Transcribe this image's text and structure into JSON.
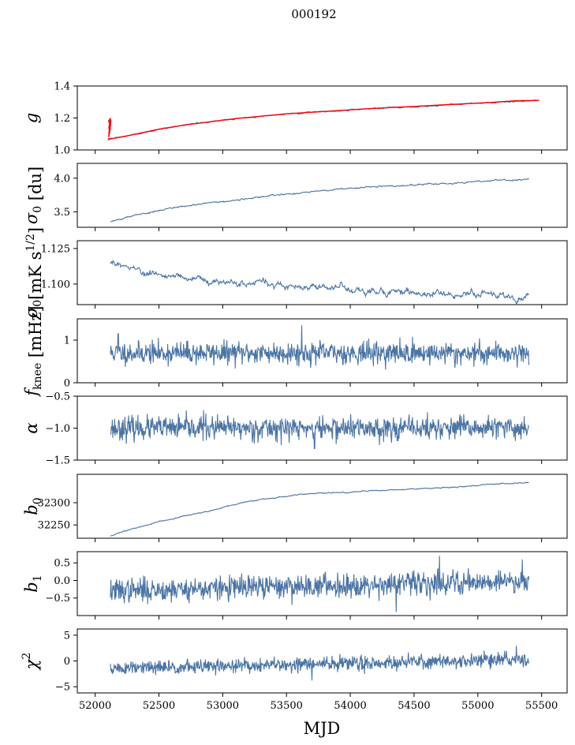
{
  "figure": {
    "title": "000192",
    "xlabel": "MJD"
  },
  "colors": {
    "series": "#4a74a5",
    "fit": "#ff0000",
    "axes": "#000000"
  },
  "chart_data": [
    {
      "type": "line",
      "id": "g",
      "ylabel_main": "g",
      "ylabel_sub": "",
      "ylabel_rest": "",
      "xlim": [
        51860,
        55700
      ],
      "ylim": [
        1.0,
        1.4
      ],
      "yticks": [
        1.0,
        1.2,
        1.4
      ],
      "ytick_labels": [
        "1.0",
        "1.2",
        "1.4"
      ],
      "show_xtick_labels": false,
      "series": [
        {
          "kind": "smooth",
          "x": [
            52100,
            52150,
            52300,
            52500,
            52700,
            52900,
            53100,
            53300,
            53500,
            53700,
            53900,
            54100,
            54300,
            54500,
            54700,
            54900,
            55100,
            55300,
            55480
          ],
          "y": [
            1.065,
            1.072,
            1.095,
            1.128,
            1.155,
            1.175,
            1.195,
            1.21,
            1.225,
            1.235,
            1.245,
            1.255,
            1.265,
            1.27,
            1.28,
            1.288,
            1.295,
            1.305,
            1.31
          ],
          "noise": 0.002
        },
        {
          "kind": "smooth",
          "role": "fit",
          "x": [
            52100,
            52150,
            52300,
            52500,
            52700,
            52900,
            53100,
            53300,
            53500,
            53700,
            53900,
            54100,
            54300,
            54500,
            54700,
            54900,
            55100,
            55300,
            55480
          ],
          "y": [
            1.07,
            1.073,
            1.096,
            1.13,
            1.156,
            1.176,
            1.196,
            1.211,
            1.226,
            1.236,
            1.246,
            1.256,
            1.265,
            1.272,
            1.281,
            1.289,
            1.297,
            1.308,
            1.31
          ],
          "spike": {
            "x": 52110,
            "ymin": 1.06,
            "ymax": 1.2
          }
        }
      ]
    },
    {
      "type": "line",
      "id": "sigma0_du",
      "ylabel_main": "σ",
      "ylabel_sub": "0",
      "ylabel_rest": " [du]",
      "xlim": [
        51860,
        55700
      ],
      "ylim": [
        3.27,
        4.22
      ],
      "yticks": [
        3.5,
        4.0
      ],
      "ytick_labels": [
        "3.5",
        "4.0"
      ],
      "show_xtick_labels": false,
      "series": [
        {
          "kind": "smooth",
          "x": [
            52120,
            52300,
            52500,
            52700,
            52900,
            53100,
            53300,
            53500,
            53700,
            53900,
            54100,
            54300,
            54500,
            54700,
            54900,
            55100,
            55300,
            55400
          ],
          "y": [
            3.35,
            3.44,
            3.52,
            3.58,
            3.63,
            3.68,
            3.72,
            3.76,
            3.8,
            3.83,
            3.86,
            3.88,
            3.9,
            3.92,
            3.94,
            3.96,
            3.97,
            3.99
          ],
          "noise": 0.006
        }
      ]
    },
    {
      "type": "line",
      "id": "sigma0_mk",
      "ylabel_main": "σ",
      "ylabel_sub": "0",
      "ylabel_rest": "[mK s",
      "ylabel_sup": "1/2",
      "ylabel_tail": "]",
      "xlim": [
        51860,
        55700
      ],
      "ylim": [
        1.0855,
        1.1305
      ],
      "yticks": [
        1.1,
        1.125
      ],
      "ytick_labels": [
        "1.100",
        "1.125"
      ],
      "show_xtick_labels": false,
      "series": [
        {
          "kind": "smooth",
          "x": [
            52120,
            52300,
            52500,
            52700,
            52900,
            53100,
            53300,
            53500,
            53700,
            53900,
            54100,
            54300,
            54500,
            54700,
            54900,
            55100,
            55300,
            55400
          ],
          "y": [
            1.115,
            1.112,
            1.107,
            1.105,
            1.103,
            1.101,
            1.1,
            1.099,
            1.098,
            1.097,
            1.096,
            1.095,
            1.094,
            1.093,
            1.093,
            1.092,
            1.091,
            1.094
          ],
          "noise": 0.0013
        }
      ]
    },
    {
      "type": "line",
      "id": "fknee",
      "ylabel_main": "f",
      "ylabel_sub": "knee",
      "ylabel_rest": " [mHz]",
      "xlim": [
        51860,
        55700
      ],
      "ylim": [
        0,
        1.5
      ],
      "yticks": [
        0,
        1
      ],
      "ytick_labels": [
        "0",
        "1"
      ],
      "show_xtick_labels": false,
      "series": [
        {
          "kind": "noise",
          "x0": 52120,
          "x1": 55400,
          "n": 900,
          "mean": 0.7,
          "std": 0.13,
          "seed": 11,
          "spikes": [
            {
              "x": 53620,
              "y": 1.35
            },
            {
              "x": 52180,
              "y": 1.15
            },
            {
              "x": 54820,
              "y": 0.35
            }
          ]
        }
      ]
    },
    {
      "type": "line",
      "id": "alpha",
      "ylabel_main": "α",
      "ylabel_sub": "",
      "ylabel_rest": "",
      "xlim": [
        51860,
        55700
      ],
      "ylim": [
        -1.5,
        -0.5
      ],
      "yticks": [
        -1.5,
        -1.0,
        -0.5
      ],
      "ytick_labels": [
        "−1.5",
        "−1.0",
        "−0.5"
      ],
      "show_xtick_labels": false,
      "series": [
        {
          "kind": "noise",
          "x0": 52120,
          "x1": 55400,
          "n": 900,
          "mean": -1.0,
          "std": 0.09,
          "seed": 23,
          "spikes": [
            {
              "x": 52850,
              "y": -0.72
            },
            {
              "x": 53720,
              "y": -1.32
            }
          ]
        }
      ]
    },
    {
      "type": "line",
      "id": "b0",
      "ylabel_main": "b",
      "ylabel_sub": "0",
      "ylabel_rest": "",
      "xlim": [
        51860,
        55700
      ],
      "ylim": [
        32220,
        32364
      ],
      "yticks": [
        32250,
        32300
      ],
      "ytick_labels": [
        "32250",
        "32300"
      ],
      "show_xtick_labels": false,
      "series": [
        {
          "kind": "smooth",
          "x": [
            52120,
            52300,
            52500,
            52700,
            52900,
            53000,
            53200,
            53400,
            53600,
            53800,
            54000,
            54200,
            54400,
            54600,
            54800,
            55000,
            55200,
            55400
          ],
          "y": [
            32226,
            32242,
            32257,
            32270,
            32281,
            32290,
            32303,
            32311,
            32318,
            32322,
            32325,
            32327,
            32329,
            32332,
            32335,
            32339,
            32343,
            32344
          ],
          "noise": 0.6
        }
      ]
    },
    {
      "type": "line",
      "id": "b1",
      "ylabel_main": "b",
      "ylabel_sub": "1",
      "ylabel_rest": "",
      "xlim": [
        51860,
        55700
      ],
      "ylim": [
        -1.0,
        0.82
      ],
      "yticks": [
        -0.5,
        0.0,
        0.5
      ],
      "ytick_labels": [
        "−0.5",
        "0.0",
        "0.5"
      ],
      "show_xtick_labels": false,
      "series": [
        {
          "kind": "noise",
          "x0": 52120,
          "x1": 55400,
          "n": 900,
          "mean_start": -0.3,
          "mean_end": 0.0,
          "std": 0.17,
          "seed": 37,
          "spikes": [
            {
              "x": 54360,
              "y": -0.9
            },
            {
              "x": 54700,
              "y": 0.7
            },
            {
              "x": 55350,
              "y": 0.6
            }
          ]
        }
      ]
    },
    {
      "type": "line",
      "id": "chi2",
      "ylabel_main": "χ",
      "ylabel_sub": "",
      "ylabel_rest": "",
      "ylabel_sup": "2",
      "xlim": [
        51860,
        55700
      ],
      "ylim": [
        -6.2,
        6.2
      ],
      "yticks": [
        -5,
        0,
        5
      ],
      "ytick_labels": [
        "−5",
        "0",
        "5"
      ],
      "show_xtick_labels": true,
      "xticks": [
        52000,
        52500,
        53000,
        53500,
        54000,
        54500,
        55000,
        55500
      ],
      "xtick_labels": [
        "52000",
        "52500",
        "53000",
        "53500",
        "54000",
        "54500",
        "55000",
        "55500"
      ],
      "series": [
        {
          "kind": "noise",
          "x0": 52120,
          "x1": 55400,
          "n": 900,
          "mean_start": -1.5,
          "mean_end": 0.3,
          "std": 0.7,
          "seed": 51,
          "spikes": [
            {
              "x": 53700,
              "y": -3.8
            },
            {
              "x": 55050,
              "y": 2.0
            }
          ]
        }
      ]
    }
  ]
}
